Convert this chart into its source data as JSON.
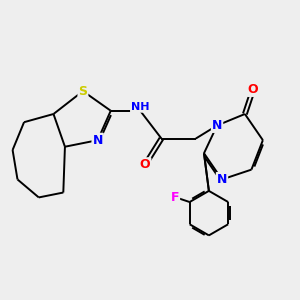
{
  "background_color": "#eeeeee",
  "atom_colors": {
    "S": "#cccc00",
    "N": "#0000ff",
    "O": "#ff0000",
    "F": "#ff00ff",
    "H": "#888888",
    "C": "#000000"
  },
  "font_size_atom": 8,
  "line_width": 1.4
}
